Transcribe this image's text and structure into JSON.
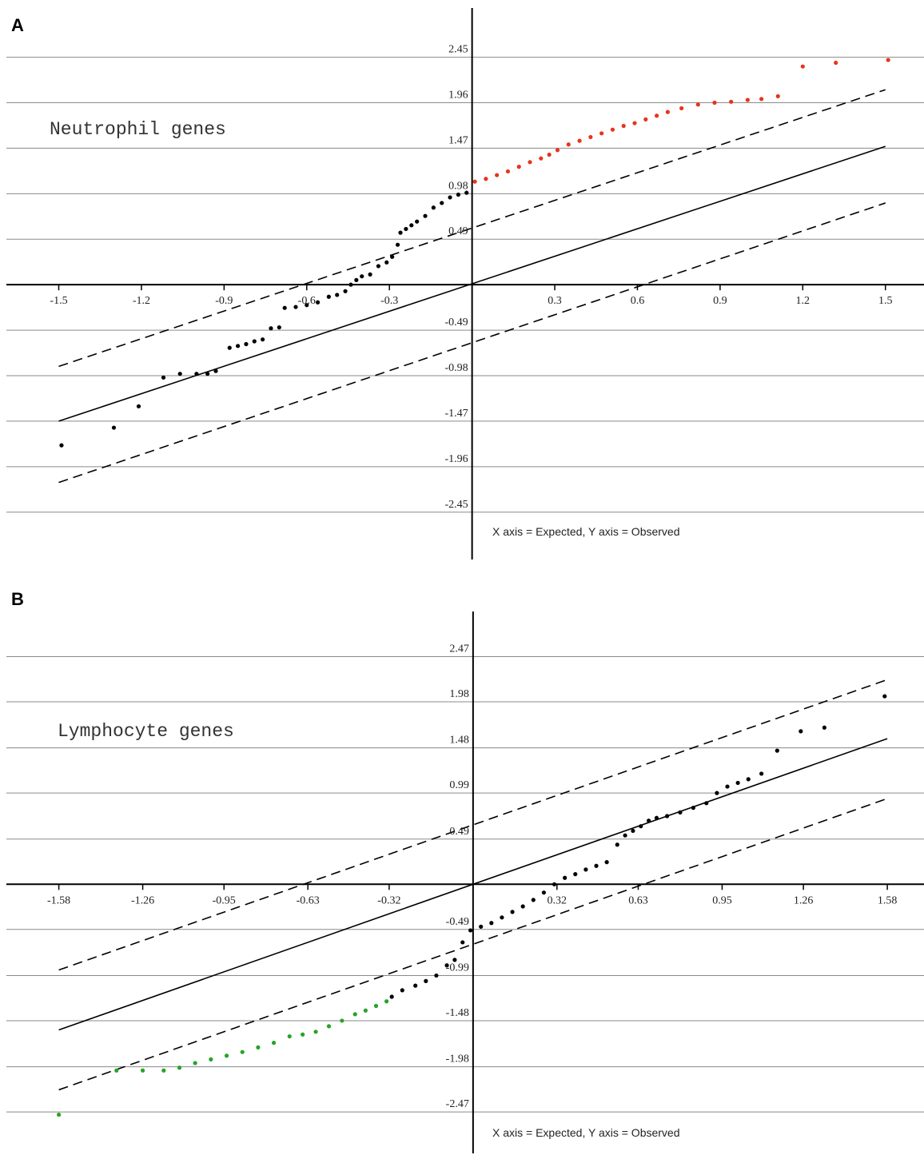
{
  "chart_data": [
    {
      "type": "scatter",
      "panel_label": "A",
      "group_label": "Neutrophil genes",
      "caption": "X axis = Expected, Y axis = Observed",
      "xticks": [
        "-1.5",
        "-1.2",
        "-0.9",
        "-0.6",
        "-0.3",
        "0.3",
        "0.6",
        "0.9",
        "1.2",
        "1.5"
      ],
      "xtick_values": [
        -1.5,
        -1.2,
        -0.9,
        -0.6,
        -0.3,
        0.3,
        0.6,
        0.9,
        1.2,
        1.5
      ],
      "yticks": [
        "2.45",
        "1.96",
        "1.47",
        "0.98",
        "0.49",
        "-0.49",
        "-0.98",
        "-1.47",
        "-1.96",
        "-2.45"
      ],
      "ytick_values": [
        2.45,
        1.96,
        1.47,
        0.98,
        0.49,
        -0.49,
        -0.98,
        -1.47,
        -1.96,
        -2.45
      ],
      "xlim": [
        -1.69,
        1.64
      ],
      "ylim": [
        -2.96,
        2.98
      ],
      "reference_lines": {
        "solid": [
          [
            -1.5,
            -1.47
          ],
          [
            1.5,
            1.49
          ]
        ],
        "dashed_upper": [
          [
            -1.5,
            -0.88
          ],
          [
            1.5,
            2.1
          ]
        ],
        "dashed_lower": [
          [
            -1.5,
            -2.13
          ],
          [
            1.5,
            0.88
          ]
        ]
      },
      "series": [
        {
          "color": "#000000",
          "points": [
            [
              -1.49,
              -1.73
            ],
            [
              -1.3,
              -1.54
            ],
            [
              -1.21,
              -1.31
            ],
            [
              -1.12,
              -1.0
            ],
            [
              -1.06,
              -0.96
            ],
            [
              -1.0,
              -0.96
            ],
            [
              -0.96,
              -0.96
            ],
            [
              -0.93,
              -0.93
            ],
            [
              -0.88,
              -0.68
            ],
            [
              -0.85,
              -0.66
            ],
            [
              -0.82,
              -0.64
            ],
            [
              -0.79,
              -0.61
            ],
            [
              -0.76,
              -0.59
            ],
            [
              -0.73,
              -0.47
            ],
            [
              -0.7,
              -0.46
            ],
            [
              -0.68,
              -0.25
            ],
            [
              -0.64,
              -0.24
            ],
            [
              -0.6,
              -0.22
            ],
            [
              -0.56,
              -0.19
            ],
            [
              -0.52,
              -0.13
            ],
            [
              -0.49,
              -0.11
            ],
            [
              -0.46,
              -0.07
            ],
            [
              -0.44,
              0.0
            ],
            [
              -0.42,
              0.05
            ],
            [
              -0.4,
              0.09
            ],
            [
              -0.37,
              0.11
            ],
            [
              -0.34,
              0.2
            ],
            [
              -0.31,
              0.24
            ],
            [
              -0.29,
              0.3
            ],
            [
              -0.27,
              0.43
            ],
            [
              -0.26,
              0.56
            ],
            [
              -0.24,
              0.6
            ],
            [
              -0.22,
              0.64
            ],
            [
              -0.2,
              0.68
            ],
            [
              -0.17,
              0.74
            ],
            [
              -0.14,
              0.83
            ],
            [
              -0.11,
              0.88
            ],
            [
              -0.08,
              0.94
            ],
            [
              -0.05,
              0.97
            ],
            [
              -0.02,
              0.99
            ]
          ]
        },
        {
          "color": "#e8341c",
          "points": [
            [
              0.01,
              1.11
            ],
            [
              0.05,
              1.14
            ],
            [
              0.09,
              1.18
            ],
            [
              0.13,
              1.22
            ],
            [
              0.17,
              1.27
            ],
            [
              0.21,
              1.32
            ],
            [
              0.25,
              1.36
            ],
            [
              0.28,
              1.4
            ],
            [
              0.31,
              1.45
            ],
            [
              0.35,
              1.51
            ],
            [
              0.39,
              1.55
            ],
            [
              0.43,
              1.59
            ],
            [
              0.47,
              1.63
            ],
            [
              0.51,
              1.67
            ],
            [
              0.55,
              1.71
            ],
            [
              0.59,
              1.74
            ],
            [
              0.63,
              1.78
            ],
            [
              0.67,
              1.82
            ],
            [
              0.71,
              1.86
            ],
            [
              0.76,
              1.9
            ],
            [
              0.82,
              1.94
            ],
            [
              0.88,
              1.96
            ],
            [
              0.94,
              1.97
            ],
            [
              1.0,
              1.99
            ],
            [
              1.05,
              2.0
            ],
            [
              1.11,
              2.03
            ],
            [
              1.2,
              2.35
            ],
            [
              1.32,
              2.39
            ],
            [
              1.51,
              2.42
            ]
          ]
        }
      ]
    },
    {
      "type": "scatter",
      "panel_label": "B",
      "group_label": "Lymphocyte genes",
      "caption": "X axis = Expected, Y axis = Observed",
      "xticks": [
        "-1.58",
        "-1.26",
        "-0.95",
        "-0.63",
        "-0.32",
        "0.32",
        "0.63",
        "0.95",
        "1.26",
        "1.58"
      ],
      "xtick_values": [
        -1.58,
        -1.26,
        -0.95,
        -0.63,
        -0.32,
        0.32,
        0.63,
        0.95,
        1.26,
        1.58
      ],
      "yticks": [
        "2.47",
        "1.98",
        "1.48",
        "0.99",
        "0.49",
        "-0.49",
        "-0.99",
        "-1.48",
        "-1.98",
        "-2.47"
      ],
      "ytick_values": [
        2.47,
        1.98,
        1.48,
        0.99,
        0.49,
        -0.49,
        -0.99,
        -1.48,
        -1.98,
        -2.47
      ],
      "xlim": [
        -1.78,
        1.72
      ],
      "ylim": [
        -2.92,
        2.96
      ],
      "reference_lines": {
        "solid": [
          [
            -1.58,
            -1.58
          ],
          [
            1.58,
            1.58
          ]
        ],
        "dashed_upper": [
          [
            -1.58,
            -0.93
          ],
          [
            1.58,
            2.22
          ]
        ],
        "dashed_lower": [
          [
            -1.58,
            -2.23
          ],
          [
            1.58,
            0.93
          ]
        ]
      },
      "series": [
        {
          "color": "#27a327",
          "points": [
            [
              -1.58,
              -2.5
            ],
            [
              -1.36,
              -2.02
            ],
            [
              -1.26,
              -2.02
            ],
            [
              -1.18,
              -2.02
            ],
            [
              -1.12,
              -1.99
            ],
            [
              -1.06,
              -1.94
            ],
            [
              -1.0,
              -1.9
            ],
            [
              -0.94,
              -1.86
            ],
            [
              -0.88,
              -1.82
            ],
            [
              -0.82,
              -1.77
            ],
            [
              -0.76,
              -1.72
            ],
            [
              -0.7,
              -1.65
            ],
            [
              -0.65,
              -1.63
            ],
            [
              -0.6,
              -1.6
            ],
            [
              -0.55,
              -1.54
            ],
            [
              -0.5,
              -1.48
            ],
            [
              -0.45,
              -1.41
            ],
            [
              -0.41,
              -1.37
            ],
            [
              -0.37,
              -1.32
            ],
            [
              -0.33,
              -1.27
            ]
          ]
        },
        {
          "color": "#000000",
          "points": [
            [
              -0.31,
              -1.22
            ],
            [
              -0.27,
              -1.15
            ],
            [
              -0.22,
              -1.1
            ],
            [
              -0.18,
              -1.05
            ],
            [
              -0.14,
              -0.99
            ],
            [
              -0.1,
              -0.88
            ],
            [
              -0.07,
              -0.82
            ],
            [
              -0.04,
              -0.63
            ],
            [
              -0.01,
              -0.5
            ],
            [
              0.03,
              -0.46
            ],
            [
              0.07,
              -0.42
            ],
            [
              0.11,
              -0.36
            ],
            [
              0.15,
              -0.3
            ],
            [
              0.19,
              -0.24
            ],
            [
              0.23,
              -0.17
            ],
            [
              0.27,
              -0.09
            ],
            [
              0.31,
              0.0
            ],
            [
              0.35,
              0.07
            ],
            [
              0.39,
              0.11
            ],
            [
              0.43,
              0.16
            ],
            [
              0.47,
              0.2
            ],
            [
              0.51,
              0.24
            ],
            [
              0.55,
              0.43
            ],
            [
              0.58,
              0.53
            ],
            [
              0.61,
              0.58
            ],
            [
              0.64,
              0.63
            ],
            [
              0.67,
              0.69
            ],
            [
              0.7,
              0.72
            ],
            [
              0.74,
              0.74
            ],
            [
              0.79,
              0.78
            ],
            [
              0.84,
              0.83
            ],
            [
              0.89,
              0.88
            ],
            [
              0.93,
              0.99
            ],
            [
              0.97,
              1.06
            ],
            [
              1.01,
              1.1
            ],
            [
              1.05,
              1.14
            ],
            [
              1.1,
              1.2
            ],
            [
              1.16,
              1.45
            ],
            [
              1.25,
              1.66
            ],
            [
              1.34,
              1.7
            ],
            [
              1.57,
              2.04
            ]
          ]
        }
      ]
    }
  ]
}
